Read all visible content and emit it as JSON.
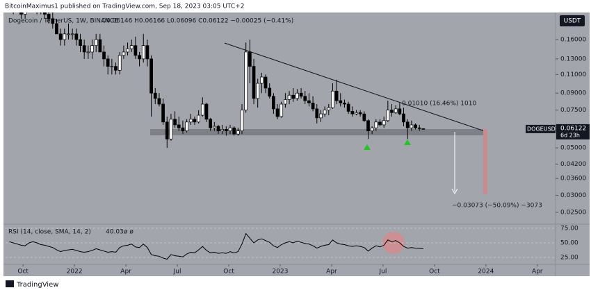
{
  "header": {
    "published": "BitcoinMaximus1 published on TradingView.com, Sep 18, 2023 03:05 UTC+2"
  },
  "footer": {
    "brand": "TradingView"
  },
  "chart_data": [
    {
      "type": "candlestick",
      "title": "Dogecoin / TetherUS, 1W, BINANCE",
      "ohlc_legend": "O0.06146 H0.06166 L0.06096 C0.06122 −0.00025 (−0.41%)",
      "currency": "USDT",
      "symbol_label": "DOGEUSDT",
      "last_price": 0.06122,
      "countdown": "6d 23h",
      "annotations": {
        "trend_measure": "0.01010 (16.46%) 1010",
        "target_measure": "−0.03073 (−50.09%) −3073"
      },
      "log_scale": true,
      "grid": false,
      "up_color": "#ffffff",
      "down_color": "#000000",
      "xlim": [
        -4.02,
        28.02
      ],
      "xticks": [
        {
          "value": -3,
          "label": "Oct"
        },
        {
          "value": 0,
          "label": "2022"
        },
        {
          "value": 3,
          "label": "Apr"
        },
        {
          "value": 6,
          "label": "Jul"
        },
        {
          "value": 9,
          "label": "Oct"
        },
        {
          "value": 12,
          "label": "2023"
        },
        {
          "value": 15,
          "label": "Apr"
        },
        {
          "value": 18,
          "label": "Jul"
        },
        {
          "value": 21,
          "label": "Oct"
        },
        {
          "value": 24,
          "label": "2024"
        },
        {
          "value": 27,
          "label": "Apr"
        }
      ],
      "ylim": [
        0.0222,
        0.214
      ],
      "yticks": [
        {
          "value": 0.16,
          "label": "0.16000"
        },
        {
          "value": 0.13,
          "label": "0.13000"
        },
        {
          "value": 0.11,
          "label": "0.11000"
        },
        {
          "value": 0.09,
          "label": "0.09000"
        },
        {
          "value": 0.075,
          "label": "0.07500"
        },
        {
          "value": 0.05,
          "label": "0.05000"
        },
        {
          "value": 0.042,
          "label": "0.04200"
        },
        {
          "value": 0.036,
          "label": "0.03600"
        },
        {
          "value": 0.03,
          "label": "0.03000"
        },
        {
          "value": 0.025,
          "label": "0.02500"
        }
      ],
      "x": [
        -3.8,
        -3.57,
        -3.34,
        -3.11,
        -2.88,
        -2.65,
        -2.42,
        -2.19,
        -1.96,
        -1.73,
        -1.5,
        -1.27,
        -1.04,
        -0.81,
        -0.58,
        -0.35,
        -0.12,
        0.11,
        0.34,
        0.57,
        0.8,
        1.03,
        1.26,
        1.49,
        1.72,
        1.95,
        2.18,
        2.41,
        2.64,
        2.87,
        3.1,
        3.33,
        3.56,
        3.79,
        4.02,
        4.25,
        4.48,
        4.71,
        4.94,
        5.17,
        5.4,
        5.63,
        5.86,
        6.09,
        6.32,
        6.55,
        6.78,
        7.01,
        7.24,
        7.47,
        7.7,
        7.93,
        8.16,
        8.39,
        8.62,
        8.85,
        9.08,
        9.31,
        9.54,
        9.77,
        10,
        10.23,
        10.46,
        10.69,
        10.92,
        11.15,
        11.38,
        11.61,
        11.84,
        12.07,
        12.3,
        12.53,
        12.76,
        12.99,
        13.22,
        13.45,
        13.68,
        13.91,
        14.14,
        14.37,
        14.6,
        14.83,
        15.06,
        15.29,
        15.52,
        15.75,
        15.98,
        16.21,
        16.44,
        16.67,
        16.9,
        17.13,
        17.36,
        17.59,
        17.82,
        18.05,
        18.28,
        18.51,
        18.74,
        18.97,
        19.2,
        19.43,
        19.66,
        19.89,
        20.12,
        20.35
      ],
      "open": [
        0.24,
        0.23,
        0.24,
        0.22,
        0.21,
        0.24,
        0.25,
        0.24,
        0.22,
        0.23,
        0.21,
        0.2,
        0.19,
        0.17,
        0.16,
        0.17,
        0.17,
        0.17,
        0.16,
        0.15,
        0.14,
        0.14,
        0.15,
        0.16,
        0.14,
        0.13,
        0.12,
        0.12,
        0.115,
        0.135,
        0.14,
        0.145,
        0.15,
        0.135,
        0.13,
        0.15,
        0.13,
        0.09,
        0.085,
        0.08,
        0.066,
        0.055,
        0.068,
        0.064,
        0.062,
        0.06,
        0.066,
        0.068,
        0.066,
        0.071,
        0.08,
        0.068,
        0.062,
        0.063,
        0.06,
        0.061,
        0.06,
        0.062,
        0.058,
        0.06,
        0.075,
        0.14,
        0.12,
        0.085,
        0.1,
        0.107,
        0.095,
        0.087,
        0.076,
        0.07,
        0.08,
        0.084,
        0.088,
        0.085,
        0.09,
        0.087,
        0.083,
        0.081,
        0.076,
        0.069,
        0.072,
        0.075,
        0.077,
        0.092,
        0.083,
        0.081,
        0.08,
        0.074,
        0.072,
        0.073,
        0.072,
        0.067,
        0.06,
        0.062,
        0.066,
        0.064,
        0.067,
        0.075,
        0.073,
        0.076,
        0.072,
        0.066,
        0.062,
        0.064,
        0.062,
        0.06146
      ],
      "high": [
        0.29,
        0.25,
        0.26,
        0.24,
        0.25,
        0.27,
        0.27,
        0.25,
        0.24,
        0.24,
        0.22,
        0.22,
        0.2,
        0.18,
        0.18,
        0.19,
        0.18,
        0.18,
        0.17,
        0.16,
        0.15,
        0.16,
        0.17,
        0.17,
        0.15,
        0.135,
        0.13,
        0.125,
        0.14,
        0.15,
        0.155,
        0.16,
        0.165,
        0.14,
        0.17,
        0.16,
        0.135,
        0.095,
        0.09,
        0.085,
        0.07,
        0.072,
        0.074,
        0.07,
        0.067,
        0.068,
        0.072,
        0.07,
        0.075,
        0.086,
        0.081,
        0.069,
        0.066,
        0.064,
        0.064,
        0.063,
        0.064,
        0.063,
        0.062,
        0.08,
        0.155,
        0.16,
        0.13,
        0.105,
        0.112,
        0.11,
        0.1,
        0.09,
        0.08,
        0.082,
        0.09,
        0.092,
        0.095,
        0.094,
        0.095,
        0.092,
        0.09,
        0.087,
        0.08,
        0.075,
        0.078,
        0.08,
        0.1,
        0.104,
        0.09,
        0.084,
        0.082,
        0.078,
        0.075,
        0.075,
        0.074,
        0.068,
        0.063,
        0.068,
        0.068,
        0.07,
        0.083,
        0.08,
        0.079,
        0.081,
        0.077,
        0.068,
        0.067,
        0.065,
        0.064,
        0.06166
      ],
      "low": [
        0.22,
        0.21,
        0.22,
        0.2,
        0.2,
        0.23,
        0.23,
        0.21,
        0.21,
        0.2,
        0.19,
        0.18,
        0.17,
        0.15,
        0.15,
        0.16,
        0.16,
        0.15,
        0.14,
        0.13,
        0.13,
        0.13,
        0.14,
        0.14,
        0.12,
        0.11,
        0.11,
        0.11,
        0.11,
        0.13,
        0.135,
        0.14,
        0.13,
        0.12,
        0.125,
        0.12,
        0.07,
        0.08,
        0.078,
        0.064,
        0.05,
        0.054,
        0.062,
        0.06,
        0.058,
        0.059,
        0.064,
        0.064,
        0.065,
        0.07,
        0.066,
        0.06,
        0.06,
        0.058,
        0.058,
        0.057,
        0.058,
        0.057,
        0.057,
        0.058,
        0.073,
        0.1,
        0.08,
        0.077,
        0.09,
        0.09,
        0.085,
        0.072,
        0.068,
        0.069,
        0.077,
        0.08,
        0.082,
        0.083,
        0.085,
        0.08,
        0.078,
        0.074,
        0.065,
        0.066,
        0.07,
        0.071,
        0.076,
        0.08,
        0.078,
        0.077,
        0.072,
        0.07,
        0.071,
        0.07,
        0.066,
        0.055,
        0.058,
        0.06,
        0.063,
        0.062,
        0.066,
        0.07,
        0.072,
        0.071,
        0.063,
        0.055,
        0.06,
        0.061,
        0.06,
        0.06096
      ],
      "close": [
        0.23,
        0.24,
        0.22,
        0.21,
        0.24,
        0.25,
        0.24,
        0.22,
        0.23,
        0.21,
        0.2,
        0.19,
        0.17,
        0.16,
        0.17,
        0.17,
        0.17,
        0.16,
        0.15,
        0.14,
        0.14,
        0.15,
        0.16,
        0.14,
        0.13,
        0.12,
        0.12,
        0.115,
        0.135,
        0.14,
        0.145,
        0.15,
        0.135,
        0.13,
        0.15,
        0.13,
        0.09,
        0.085,
        0.08,
        0.066,
        0.055,
        0.068,
        0.064,
        0.062,
        0.06,
        0.066,
        0.068,
        0.066,
        0.071,
        0.08,
        0.068,
        0.062,
        0.063,
        0.06,
        0.061,
        0.06,
        0.062,
        0.058,
        0.06,
        0.075,
        0.14,
        0.12,
        0.085,
        0.1,
        0.107,
        0.095,
        0.087,
        0.076,
        0.07,
        0.08,
        0.084,
        0.088,
        0.085,
        0.09,
        0.087,
        0.083,
        0.081,
        0.076,
        0.069,
        0.072,
        0.075,
        0.077,
        0.092,
        0.083,
        0.081,
        0.08,
        0.074,
        0.072,
        0.073,
        0.072,
        0.067,
        0.06,
        0.062,
        0.066,
        0.064,
        0.067,
        0.075,
        0.073,
        0.076,
        0.072,
        0.066,
        0.062,
        0.064,
        0.062,
        0.0615,
        0.06122
      ]
    },
    {
      "type": "line",
      "title": "RSI (14, close, SMA, 14, 2)",
      "legend_extra": "ø  ø",
      "color": "#000000",
      "ylim": [
        14.3,
        79.8
      ],
      "yticks": [
        {
          "value": 75,
          "label": "75.00"
        },
        {
          "value": 50,
          "label": "50.00"
        },
        {
          "value": 25,
          "label": "25.00"
        }
      ],
      "values": [
        52,
        50,
        48,
        46,
        45,
        50,
        52,
        50,
        47,
        46,
        44,
        42,
        38,
        35,
        37,
        38,
        39,
        37,
        35,
        34,
        35,
        37,
        40,
        38,
        36,
        34,
        35,
        34,
        42,
        45,
        46,
        48,
        43,
        42,
        48,
        42,
        30,
        28,
        27,
        24,
        22,
        30,
        28,
        27,
        26,
        31,
        34,
        33,
        38,
        44,
        37,
        33,
        34,
        32,
        33,
        32,
        35,
        33,
        35,
        48,
        66,
        58,
        50,
        55,
        57,
        54,
        51,
        45,
        42,
        47,
        50,
        52,
        50,
        53,
        51,
        49,
        48,
        45,
        41,
        44,
        46,
        47,
        55,
        50,
        48,
        47,
        45,
        44,
        45,
        44,
        42,
        36,
        41,
        45,
        43,
        46,
        55,
        52,
        54,
        50,
        44,
        41,
        42,
        41,
        40.5,
        40.03
      ]
    }
  ]
}
